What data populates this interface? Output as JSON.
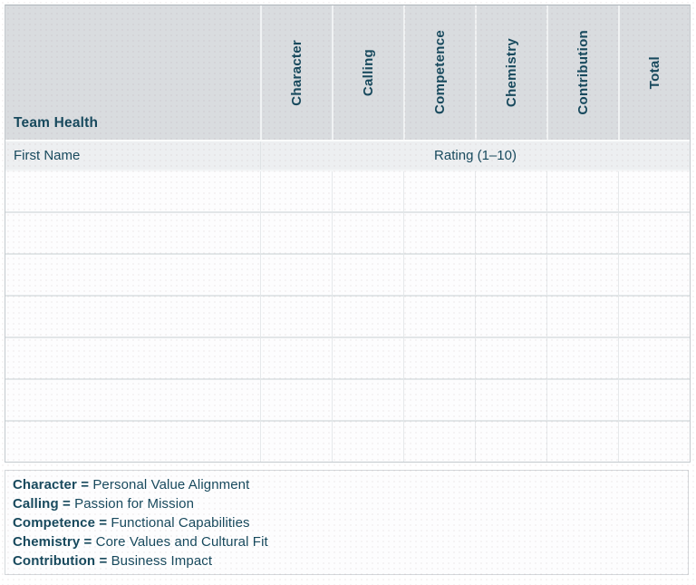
{
  "table": {
    "title": "Team Health",
    "columns": [
      "Character",
      "Calling",
      "Competence",
      "Chemistry",
      "Contribution",
      "Total"
    ],
    "subheader": {
      "row_label": "First Name",
      "rating_label": "Rating (1–10)"
    },
    "empty_row_count": 7
  },
  "legend": {
    "separator": "=",
    "items": [
      {
        "term": "Character",
        "definition": "Personal Value Alignment"
      },
      {
        "term": "Calling",
        "definition": "Passion for Mission"
      },
      {
        "term": "Competence",
        "definition": "Functional Capabilities"
      },
      {
        "term": "Chemistry",
        "definition": "Core Values and Cultural Fit"
      },
      {
        "term": "Contribution",
        "definition": "Business Impact"
      }
    ]
  },
  "colors": {
    "accent_text": "#17495d",
    "header_bg": "#d9dcdf",
    "subheader_bg": "#edeff1",
    "body_bg": "#fdfdfe",
    "grid_line": "#e2e6e8",
    "outer_border": "#c3c9cd"
  }
}
